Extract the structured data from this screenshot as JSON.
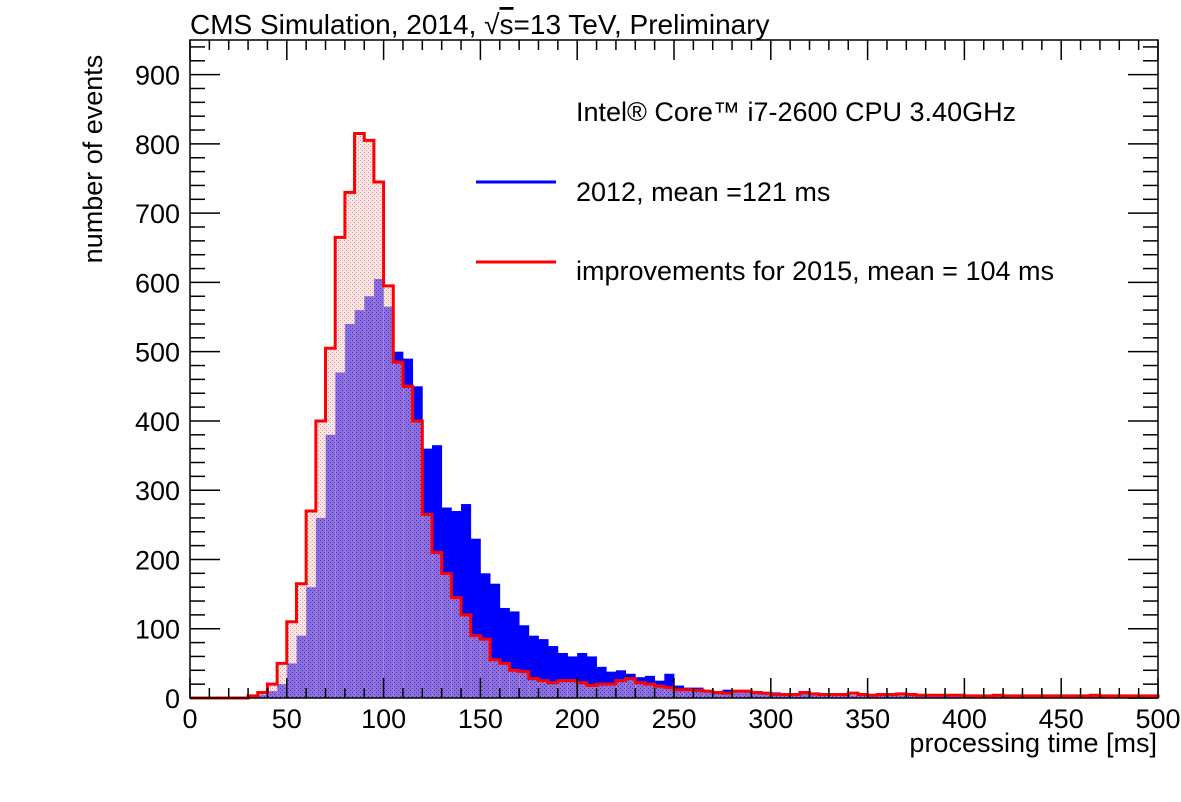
{
  "chart_data": {
    "type": "histogram",
    "title": "CMS Simulation, 2014, √s=13 TeV, Preliminary",
    "title_parts": {
      "prefix": "CMS Simulation, 2014, ",
      "radical": "√",
      "radicand": "s",
      "suffix": "=13 TeV, Preliminary"
    },
    "xlabel": "processing time [ms]",
    "ylabel": "number of events",
    "xlim": [
      0,
      500
    ],
    "ylim": [
      0,
      950
    ],
    "xticks": [
      0,
      50,
      100,
      150,
      200,
      250,
      300,
      350,
      400,
      450,
      500
    ],
    "yticks": [
      0,
      100,
      200,
      300,
      400,
      500,
      600,
      700,
      800,
      900
    ],
    "x_tick_labels": [
      "0",
      "50",
      "100",
      "150",
      "200",
      "250",
      "300",
      "350",
      "400",
      "450",
      "500"
    ],
    "y_tick_labels": [
      "0",
      "100",
      "200",
      "300",
      "400",
      "500",
      "600",
      "700",
      "800",
      "900"
    ],
    "grid": false,
    "bin_width": 5,
    "bin_start": 0,
    "legend": {
      "placement": "top-right",
      "header": "Intel® Core™ i7-2600 CPU 3.40GHz",
      "entries": [
        {
          "label": "2012, mean =121 ms",
          "color": "#0000ff"
        },
        {
          "label": "improvements for 2015, mean = 104 ms",
          "color": "#ff0000"
        }
      ]
    },
    "series": [
      {
        "name": "2012, mean =121 ms",
        "color": "#0000ff",
        "fill": "solid",
        "values": [
          0,
          0,
          0,
          0,
          0,
          0,
          2,
          5,
          10,
          20,
          50,
          90,
          160,
          260,
          380,
          470,
          540,
          560,
          580,
          605,
          565,
          500,
          490,
          450,
          360,
          365,
          275,
          270,
          280,
          230,
          180,
          165,
          130,
          125,
          105,
          90,
          85,
          75,
          65,
          60,
          65,
          60,
          45,
          38,
          40,
          35,
          30,
          32,
          25,
          35,
          18,
          15,
          15,
          10,
          10,
          12,
          9,
          8,
          8,
          8,
          8,
          6,
          6,
          6,
          5,
          5,
          5,
          5,
          4,
          4,
          4,
          4,
          4,
          4,
          3,
          3,
          3,
          3,
          3,
          3,
          3,
          3,
          3,
          3,
          3,
          3,
          3,
          3,
          3,
          3,
          3,
          3,
          3,
          3,
          3,
          3,
          3,
          3,
          3,
          3
        ]
      },
      {
        "name": "improvements for 2015, mean = 104 ms",
        "color": "#ff0000",
        "fill": "hatched",
        "values": [
          0,
          0,
          0,
          0,
          0,
          0,
          3,
          8,
          20,
          50,
          110,
          165,
          270,
          400,
          505,
          665,
          730,
          815,
          805,
          745,
          595,
          485,
          450,
          400,
          265,
          210,
          180,
          145,
          120,
          90,
          85,
          55,
          50,
          40,
          38,
          28,
          25,
          22,
          25,
          25,
          22,
          18,
          20,
          20,
          25,
          28,
          22,
          20,
          17,
          15,
          12,
          12,
          11,
          10,
          8,
          7,
          10,
          10,
          8,
          7,
          5,
          5,
          5,
          8,
          6,
          5,
          5,
          5,
          7,
          5,
          4,
          5,
          5,
          6,
          5,
          4,
          4,
          4,
          4,
          4,
          3,
          3,
          3,
          4,
          3,
          3,
          3,
          3,
          3,
          3,
          3,
          3,
          3,
          4,
          3,
          3,
          3,
          3,
          3,
          3
        ]
      }
    ]
  }
}
